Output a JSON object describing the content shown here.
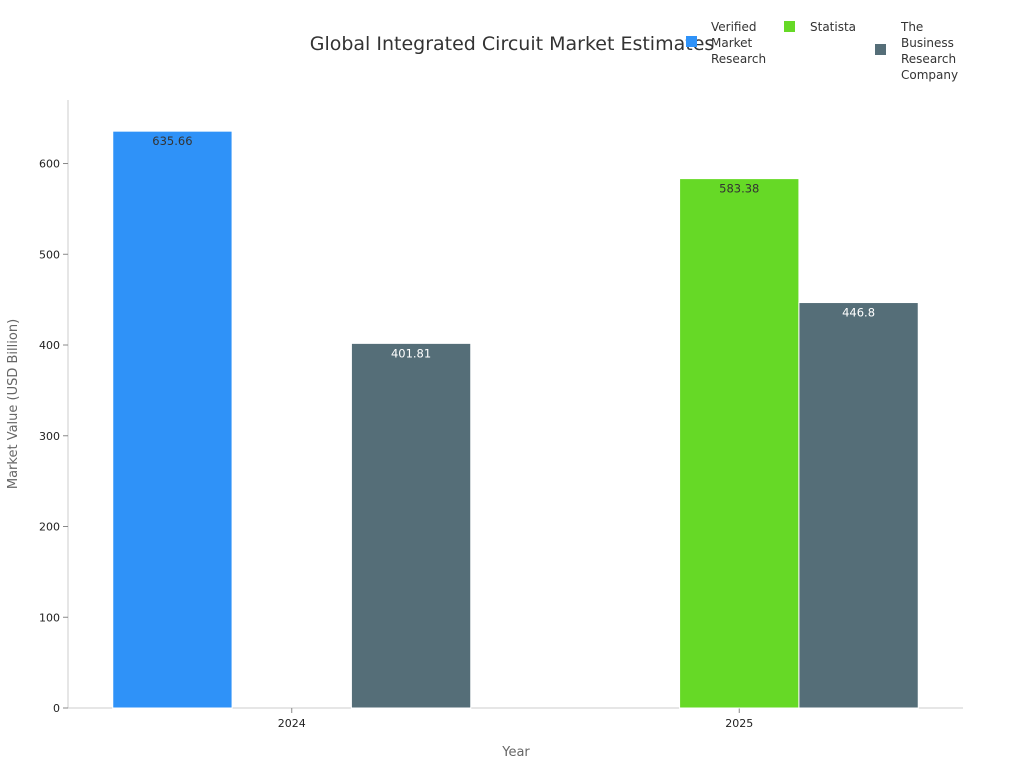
{
  "chart_data": {
    "type": "bar",
    "title": "Global Integrated Circuit Market Estimates",
    "xlabel": "Year",
    "ylabel": "Market Value (USD Billion)",
    "categories": [
      "2024",
      "2025"
    ],
    "ylim": [
      0,
      670
    ],
    "yticks": [
      0,
      100,
      200,
      300,
      400,
      500,
      600
    ],
    "grid": false,
    "legend_position": "top-right",
    "series": [
      {
        "name": "Verified Market Research",
        "color": "#2f92f8",
        "label_color": "#333333",
        "values": [
          635.66,
          null
        ]
      },
      {
        "name": "Statista",
        "color": "#66d926",
        "label_color": "#333333",
        "values": [
          null,
          583.38
        ]
      },
      {
        "name": "The Business Research Company",
        "color": "#556e78",
        "label_color": "#ffffff",
        "values": [
          401.81,
          446.8
        ]
      }
    ]
  }
}
